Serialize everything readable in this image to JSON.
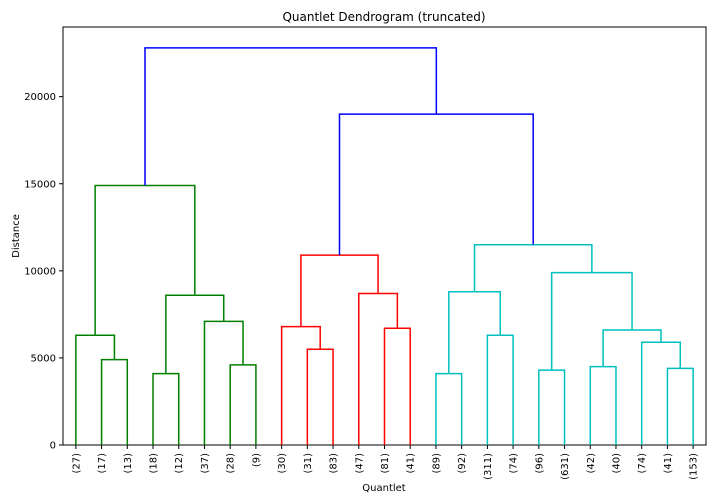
{
  "chart_data": {
    "type": "dendrogram",
    "title": "Quantlet Dendrogram (truncated)",
    "xlabel": "Quantlet",
    "ylabel": "Distance",
    "ylim": [
      0,
      24000
    ],
    "yticks": [
      0,
      5000,
      10000,
      15000,
      20000
    ],
    "grid": false,
    "leaves": [
      "(27)",
      "(17)",
      "(13)",
      "(18)",
      "(12)",
      "(37)",
      "(28)",
      "(9)",
      "(30)",
      "(31)",
      "(83)",
      "(47)",
      "(81)",
      "(41)",
      "(89)",
      "(92)",
      "(311)",
      "(74)",
      "(96)",
      "(631)",
      "(42)",
      "(40)",
      "(74)",
      "(41)",
      "(153)"
    ],
    "colors": {
      "green": "#008000",
      "red": "#ff0000",
      "cyan": "#00bfbf",
      "blue": "#0000ff"
    },
    "links": [
      {
        "left": 1,
        "right": 2,
        "height": 4900,
        "color": "green"
      },
      {
        "left": 0,
        "right": 25,
        "height": 6300,
        "color": "green"
      },
      {
        "left": 3,
        "right": 4,
        "height": 4100,
        "color": "green"
      },
      {
        "left": 6,
        "right": 7,
        "height": 4600,
        "color": "green"
      },
      {
        "left": 5,
        "right": 28,
        "height": 7100,
        "color": "green"
      },
      {
        "left": 27,
        "right": 29,
        "height": 8600,
        "color": "green"
      },
      {
        "left": 26,
        "right": 30,
        "height": 14900,
        "color": "green"
      },
      {
        "left": 9,
        "right": 10,
        "height": 5500,
        "color": "red"
      },
      {
        "left": 8,
        "right": 32,
        "height": 6800,
        "color": "red"
      },
      {
        "left": 12,
        "right": 13,
        "height": 6700,
        "color": "red"
      },
      {
        "left": 11,
        "right": 34,
        "height": 8700,
        "color": "red"
      },
      {
        "left": 33,
        "right": 35,
        "height": 10900,
        "color": "red"
      },
      {
        "left": 14,
        "right": 15,
        "height": 4100,
        "color": "cyan"
      },
      {
        "left": 16,
        "right": 17,
        "height": 6300,
        "color": "cyan"
      },
      {
        "left": 37,
        "right": 38,
        "height": 8800,
        "color": "cyan"
      },
      {
        "left": 18,
        "right": 19,
        "height": 4300,
        "color": "cyan"
      },
      {
        "left": 20,
        "right": 21,
        "height": 4500,
        "color": "cyan"
      },
      {
        "left": 23,
        "right": 24,
        "height": 4400,
        "color": "cyan"
      },
      {
        "left": 22,
        "right": 42,
        "height": 5900,
        "color": "cyan"
      },
      {
        "left": 41,
        "right": 43,
        "height": 6600,
        "color": "cyan"
      },
      {
        "left": 40,
        "right": 44,
        "height": 9900,
        "color": "cyan"
      },
      {
        "left": 39,
        "right": 45,
        "height": 11500,
        "color": "cyan"
      },
      {
        "left": 36,
        "right": 46,
        "height": 19000,
        "color": "blue"
      },
      {
        "left": 31,
        "right": 47,
        "height": 22800,
        "color": "blue"
      }
    ]
  }
}
